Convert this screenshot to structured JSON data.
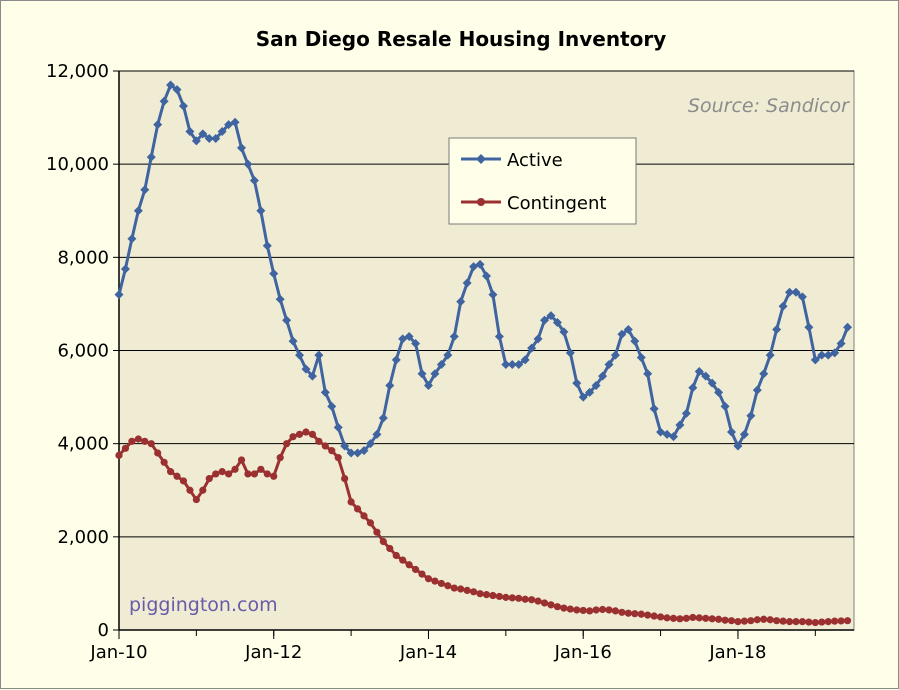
{
  "chart_data": {
    "type": "line",
    "title": "San Diego Resale Housing Inventory",
    "source_note": "Source: Sandicor",
    "site_label": "piggington.com",
    "xlabel": "",
    "ylabel": "",
    "x_start": "2010-01",
    "x_frequency": "monthly",
    "x_tick_labels": [
      "Jan-10",
      "Jan-12",
      "Jan-14",
      "Jan-16",
      "Jan-18"
    ],
    "x_tick_dates": [
      "2010-01",
      "2012-01",
      "2014-01",
      "2016-01",
      "2018-01"
    ],
    "x_range": [
      "2010-01",
      "2019-07"
    ],
    "ylim": [
      0,
      12000
    ],
    "y_ticks": [
      0,
      2000,
      4000,
      6000,
      8000,
      10000,
      12000
    ],
    "y_tick_labels": [
      "0",
      "2,000",
      "4,000",
      "6,000",
      "8,000",
      "10,000",
      "12,000"
    ],
    "grid": "horizontal",
    "legend": "upper-middle",
    "series": [
      {
        "name": "Active",
        "color": "#3f64a0",
        "marker": "diamond",
        "values": [
          7200,
          7750,
          8400,
          9000,
          9450,
          10150,
          10850,
          11350,
          11700,
          11600,
          11250,
          10700,
          10500,
          10650,
          10550,
          10550,
          10700,
          10850,
          10900,
          10350,
          10000,
          9650,
          9000,
          8250,
          7650,
          7100,
          6650,
          6200,
          5900,
          5600,
          5450,
          5900,
          5100,
          4800,
          4350,
          3950,
          3800,
          3800,
          3850,
          4000,
          4200,
          4550,
          5250,
          5800,
          6250,
          6300,
          6150,
          5500,
          5250,
          5500,
          5700,
          5900,
          6300,
          7050,
          7450,
          7800,
          7850,
          7600,
          7200,
          6300,
          5700,
          5700,
          5700,
          5800,
          6050,
          6250,
          6650,
          6750,
          6600,
          6400,
          5950,
          5300,
          5000,
          5100,
          5250,
          5450,
          5700,
          5900,
          6350,
          6450,
          6200,
          5850,
          5500,
          4750,
          4250,
          4200,
          4150,
          4400,
          4650,
          5200,
          5550,
          5450,
          5300,
          5100,
          4800,
          4250,
          3950,
          4200,
          4600,
          5150,
          5500,
          5900,
          6450,
          6950,
          7250,
          7250,
          7150,
          6500,
          5800,
          5900,
          5900,
          5950,
          6150,
          6500
        ]
      },
      {
        "name": "Contingent",
        "color": "#9b3030",
        "marker": "circle",
        "values": [
          3750,
          3900,
          4050,
          4100,
          4050,
          4000,
          3800,
          3600,
          3400,
          3300,
          3200,
          3000,
          2800,
          3000,
          3250,
          3350,
          3400,
          3350,
          3450,
          3650,
          3350,
          3350,
          3450,
          3350,
          3300,
          3700,
          4000,
          4150,
          4200,
          4250,
          4200,
          4050,
          3950,
          3850,
          3700,
          3250,
          2750,
          2600,
          2450,
          2300,
          2100,
          1900,
          1750,
          1600,
          1500,
          1400,
          1300,
          1200,
          1100,
          1050,
          1000,
          950,
          900,
          880,
          850,
          820,
          780,
          760,
          740,
          720,
          700,
          690,
          680,
          660,
          650,
          620,
          580,
          540,
          500,
          470,
          450,
          430,
          420,
          410,
          430,
          440,
          430,
          410,
          380,
          360,
          350,
          340,
          320,
          300,
          280,
          260,
          250,
          240,
          250,
          270,
          260,
          250,
          240,
          230,
          210,
          200,
          180,
          190,
          200,
          220,
          230,
          220,
          200,
          190,
          180,
          180,
          180,
          170,
          160,
          170,
          180,
          190,
          195,
          200
        ]
      }
    ]
  }
}
